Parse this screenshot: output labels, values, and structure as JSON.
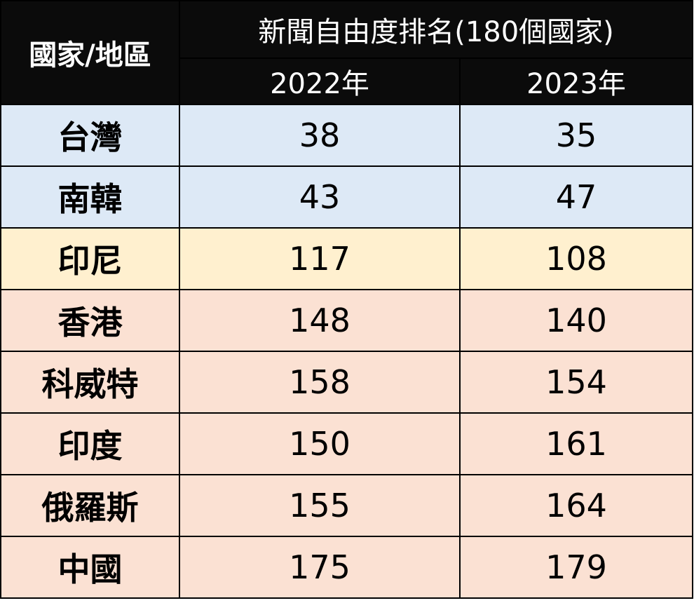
{
  "header": {
    "country_label": "國家/地區",
    "ranking_title": "新聞自由度排名(180個國家)",
    "year_1": "2022年",
    "year_2": "2023年"
  },
  "colors": {
    "header_bg": "#0b0b0b",
    "group_blue": "#dde9f6",
    "group_yellow": "#fff0cf",
    "group_salmon": "#fbe1d3"
  },
  "rows": [
    {
      "country": "台灣",
      "y2022": "38",
      "y2023": "35",
      "group": "blue"
    },
    {
      "country": "南韓",
      "y2022": "43",
      "y2023": "47",
      "group": "blue"
    },
    {
      "country": "印尼",
      "y2022": "117",
      "y2023": "108",
      "group": "yellow"
    },
    {
      "country": "香港",
      "y2022": "148",
      "y2023": "140",
      "group": "salmon"
    },
    {
      "country": "科威特",
      "y2022": "158",
      "y2023": "154",
      "group": "salmon"
    },
    {
      "country": "印度",
      "y2022": "150",
      "y2023": "161",
      "group": "salmon"
    },
    {
      "country": "俄羅斯",
      "y2022": "155",
      "y2023": "164",
      "group": "salmon"
    },
    {
      "country": "中國",
      "y2022": "175",
      "y2023": "179",
      "group": "salmon"
    }
  ]
}
